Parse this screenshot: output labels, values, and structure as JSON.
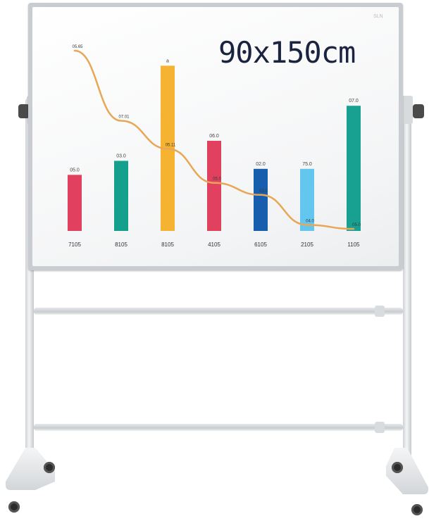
{
  "board": {
    "size_label": "90x150cm",
    "brand_mark": "SLN"
  },
  "chart_data": {
    "type": "bar",
    "title": "",
    "categories": [
      "7105",
      "8105",
      "8105",
      "4105",
      "6105",
      "2105",
      "1105"
    ],
    "values": [
      0.56,
      0.7,
      1.65,
      0.9,
      0.62,
      0.62,
      1.25
    ],
    "bar_labels": [
      "05.0",
      "03.0",
      "a",
      "06.0",
      "02.0",
      "75.0",
      "07.0"
    ],
    "colors": [
      "#e2405f",
      "#14a08d",
      "#f6b331",
      "#e2405f",
      "#175fae",
      "#62c6ef",
      "#18a191"
    ],
    "ylim": [
      0,
      1.8
    ],
    "overlay_line": {
      "color": "#e8a756",
      "values": [
        1.8,
        1.1,
        0.82,
        0.48,
        0.36,
        0.06,
        0.02
      ],
      "labels": [
        "05.65",
        "07.01",
        "05.11",
        "05.0",
        "03.0",
        "04.0",
        "05.0"
      ]
    }
  }
}
